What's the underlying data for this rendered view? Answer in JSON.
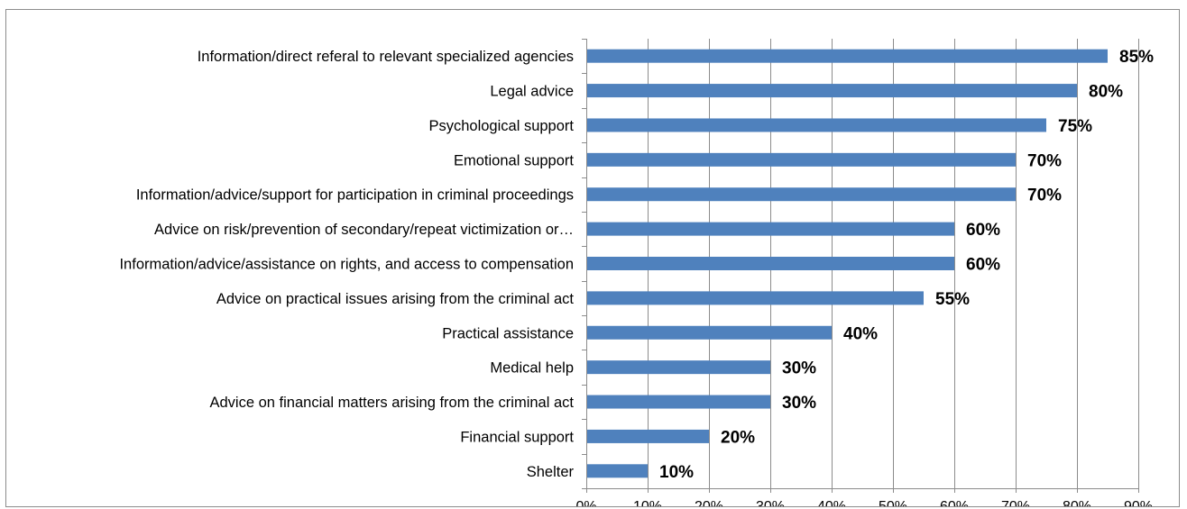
{
  "chart_data": {
    "type": "bar",
    "orientation": "horizontal",
    "categories": [
      "Information/direct referal to relevant specialized agencies",
      "Legal advice",
      "Psychological support",
      "Emotional support",
      "Information/advice/support for participation in criminal proceedings",
      "Advice on risk/prevention of secondary/repeat victimization or…",
      "Information/advice/assistance on rights, and access to compensation",
      "Advice on practical issues arising from the criminal act",
      "Practical assistance",
      "Medical help",
      "Advice on financial matters arising from the criminal act",
      "Financial support",
      "Shelter"
    ],
    "values": [
      85,
      80,
      75,
      70,
      70,
      60,
      60,
      55,
      40,
      30,
      30,
      20,
      10
    ],
    "data_labels": [
      "85%",
      "80%",
      "75%",
      "70%",
      "70%",
      "60%",
      "60%",
      "55%",
      "40%",
      "30%",
      "30%",
      "20%",
      "10%"
    ],
    "x_ticks": [
      "0%",
      "10%",
      "20%",
      "30%",
      "40%",
      "50%",
      "60%",
      "70%",
      "80%",
      "90%"
    ],
    "xlim": [
      0,
      90
    ],
    "grid": "vertical",
    "legend": "none",
    "bar_color": "#4f81bd",
    "grid_color": "#8c8c8c"
  }
}
